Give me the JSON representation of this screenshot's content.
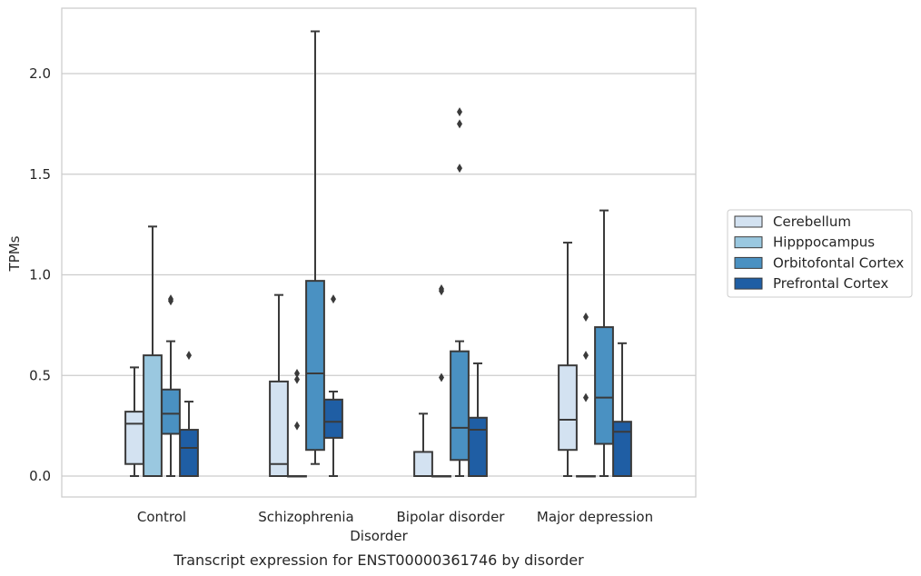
{
  "chart_data": {
    "type": "box",
    "title": "Transcript expression for ENST00000361746 by disorder",
    "xlabel": "Disorder",
    "ylabel": "TPMs",
    "ylim": [
      -0.11,
      2.33
    ],
    "yticks": [
      "0.0",
      "0.5",
      "1.0",
      "1.5",
      "2.0"
    ],
    "ytick_values": [
      0,
      0.5,
      1.0,
      1.5,
      2.0
    ],
    "grid": "horizontal",
    "legend_position": "right",
    "categories": [
      "Control",
      "Schizophrenia",
      "Bipolar disorder",
      "Major depression"
    ],
    "series": [
      {
        "name": "Cerebellum",
        "color": "#d3e2f1",
        "boxes": [
          {
            "whislo": 0.0,
            "q1": 0.06,
            "med": 0.26,
            "q3": 0.32,
            "whishi": 0.54,
            "fliers": []
          },
          {
            "whislo": 0.0,
            "q1": 0.0,
            "med": 0.06,
            "q3": 0.47,
            "whishi": 0.9,
            "fliers": []
          },
          {
            "whislo": 0.0,
            "q1": 0.0,
            "med": 0.0,
            "q3": 0.12,
            "whishi": 0.31,
            "fliers": []
          },
          {
            "whislo": 0.0,
            "q1": 0.13,
            "med": 0.28,
            "q3": 0.55,
            "whishi": 1.16,
            "fliers": []
          }
        ]
      },
      {
        "name": "Hipppocampus",
        "color": "#9ac8e0",
        "boxes": [
          {
            "whislo": 0.0,
            "q1": 0.0,
            "med": 0.0,
            "q3": 0.6,
            "whishi": 1.24,
            "fliers": []
          },
          {
            "whislo": 0.0,
            "q1": 0.0,
            "med": 0.0,
            "q3": 0.0,
            "whishi": 0.0,
            "fliers": [
              0.25,
              0.48,
              0.51
            ]
          },
          {
            "whislo": 0.0,
            "q1": 0.0,
            "med": 0.0,
            "q3": 0.0,
            "whishi": 0.0,
            "fliers": [
              0.49,
              0.92,
              0.93
            ]
          },
          {
            "whislo": 0.0,
            "q1": 0.0,
            "med": 0.0,
            "q3": 0.0,
            "whishi": 0.0,
            "fliers": [
              0.39,
              0.6,
              0.79
            ]
          }
        ]
      },
      {
        "name": "Orbitofontal Cortex",
        "color": "#4a91c2",
        "boxes": [
          {
            "whislo": 0.0,
            "q1": 0.21,
            "med": 0.31,
            "q3": 0.43,
            "whishi": 0.67,
            "fliers": [
              0.87,
              0.88
            ]
          },
          {
            "whislo": 0.06,
            "q1": 0.13,
            "med": 0.51,
            "q3": 0.97,
            "whishi": 2.21,
            "fliers": []
          },
          {
            "whislo": 0.0,
            "q1": 0.08,
            "med": 0.24,
            "q3": 0.62,
            "whishi": 0.67,
            "fliers": [
              1.53,
              1.75,
              1.81
            ]
          },
          {
            "whislo": 0.0,
            "q1": 0.16,
            "med": 0.39,
            "q3": 0.74,
            "whishi": 1.32,
            "fliers": []
          }
        ]
      },
      {
        "name": "Prefrontal Cortex",
        "color": "#1f5ea4",
        "boxes": [
          {
            "whislo": 0.0,
            "q1": 0.0,
            "med": 0.14,
            "q3": 0.23,
            "whishi": 0.37,
            "fliers": [
              0.6
            ]
          },
          {
            "whislo": 0.0,
            "q1": 0.19,
            "med": 0.27,
            "q3": 0.38,
            "whishi": 0.42,
            "fliers": [
              0.88
            ]
          },
          {
            "whislo": 0.0,
            "q1": 0.0,
            "med": 0.23,
            "q3": 0.29,
            "whishi": 0.56,
            "fliers": []
          },
          {
            "whislo": 0.0,
            "q1": 0.0,
            "med": 0.22,
            "q3": 0.27,
            "whishi": 0.66,
            "fliers": []
          }
        ]
      }
    ]
  }
}
